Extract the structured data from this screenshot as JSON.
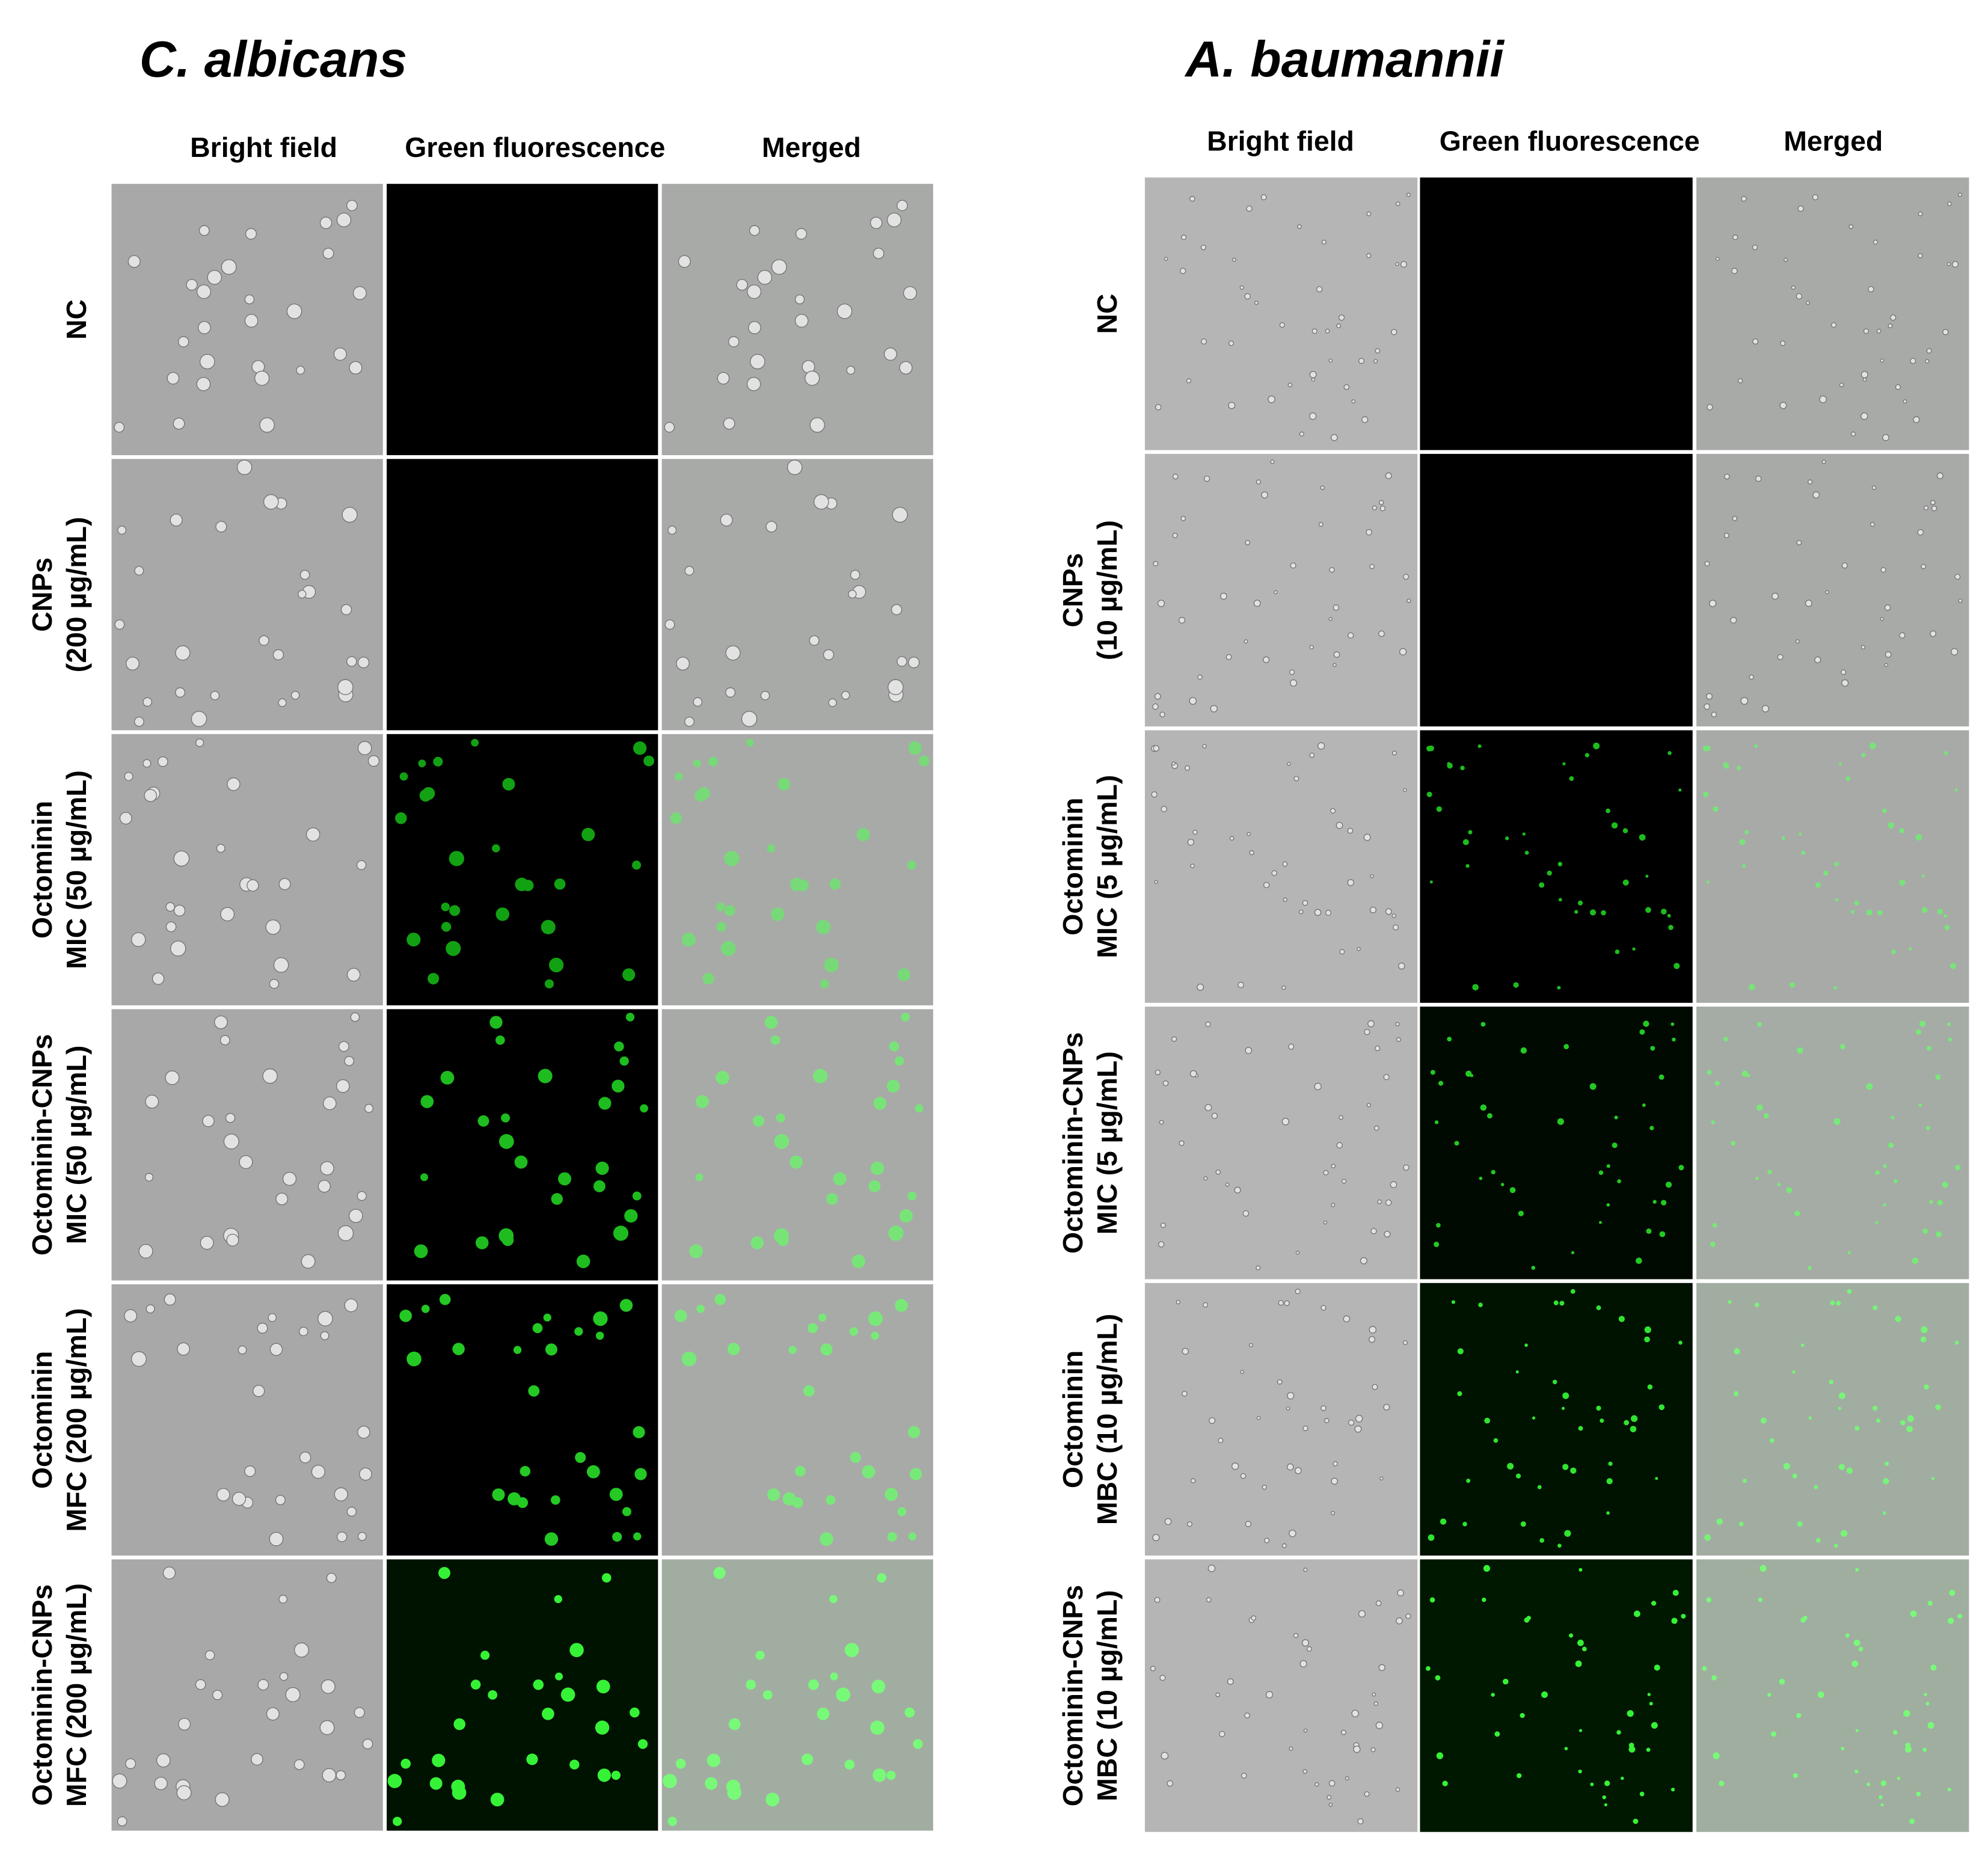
{
  "panels": [
    {
      "title": "C. albicans",
      "columns": [
        "Bright field",
        "Green fluorescence",
        "Merged"
      ],
      "rows": [
        [
          "NC"
        ],
        [
          "CNPs",
          "(200 µg/mL)"
        ],
        [
          "Octominin",
          "MIC (50 µg/mL)"
        ],
        [
          "Octominin-CNPs",
          "MIC (50 µg/mL)"
        ],
        [
          "Octominin",
          "MFC (200 µg/mL)"
        ],
        [
          "Octominin-CNPs",
          "MFC (200 µg/mL)"
        ]
      ]
    },
    {
      "title": "A. baumannii",
      "columns": [
        "Bright field",
        "Green fluorescence",
        "Merged"
      ],
      "rows": [
        [
          "NC"
        ],
        [
          "CNPs",
          "(10 µg/mL)"
        ],
        [
          "Octominin",
          "MIC (5 µg/mL)"
        ],
        [
          "Octominin-CNPs",
          "MIC (5 µg/mL)"
        ],
        [
          "Octominin",
          "MBC (10 µg/mL)"
        ],
        [
          "Octominin-CNPs",
          "MBC (10 µg/mL)"
        ]
      ]
    }
  ]
}
